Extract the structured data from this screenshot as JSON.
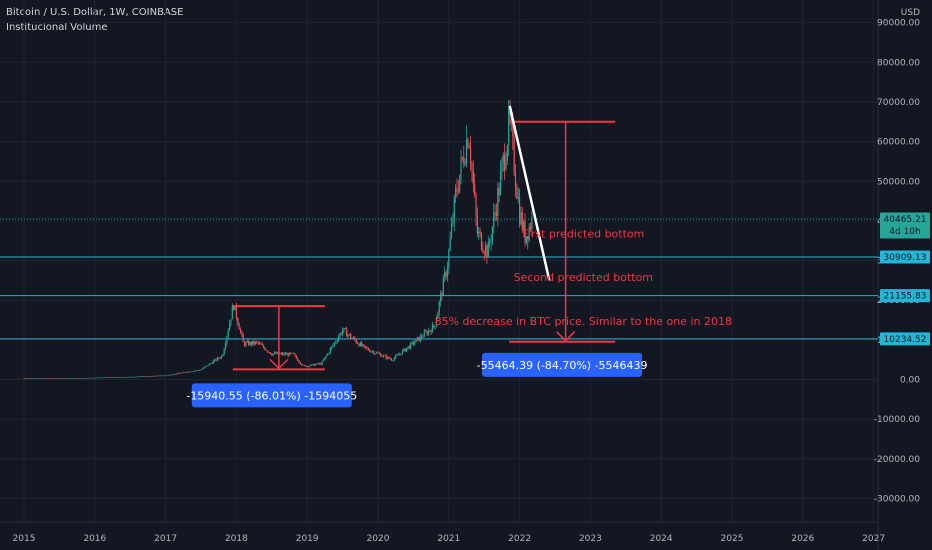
{
  "header": {
    "title": "Bitcoin / U.S. Dollar, 1W, COINBASE",
    "indicator": "Institucional Volume",
    "currency": "USD"
  },
  "colors": {
    "background": "#131722",
    "grid": "#1f2433",
    "candle_up": "#26a69a",
    "candle_down": "#ef5350",
    "support_line": "#22b7d6",
    "annotation": "#f23645",
    "trendline": "#ffffff",
    "measure_box": "#2962ff"
  },
  "chart_data": {
    "type": "candlestick",
    "title": "Bitcoin / U.S. Dollar, 1W, COINBASE",
    "xlabel": "",
    "ylabel": "",
    "x_ticks": [
      "2015",
      "2016",
      "2017",
      "2018",
      "2019",
      "2020",
      "2021",
      "2022",
      "2023",
      "2024",
      "2025",
      "2026",
      "2027"
    ],
    "y_ticks": [
      "90000.00",
      "80000.00",
      "70000.00",
      "60000.00",
      "50000.00",
      "40000.00",
      "30000.00",
      "20000.00",
      "10000.00",
      "0.00",
      "-10000.00",
      "-20000.00",
      "-30000.00"
    ],
    "ylim": [
      -35000,
      93000
    ],
    "grid": true,
    "price_series": [
      {
        "x": 2015.0,
        "y": 300
      },
      {
        "x": 2015.5,
        "y": 250
      },
      {
        "x": 2016.0,
        "y": 430
      },
      {
        "x": 2016.5,
        "y": 650
      },
      {
        "x": 2017.0,
        "y": 1000
      },
      {
        "x": 2017.5,
        "y": 2500
      },
      {
        "x": 2017.8,
        "y": 6000
      },
      {
        "x": 2017.96,
        "y": 19000
      },
      {
        "x": 2018.1,
        "y": 9000
      },
      {
        "x": 2018.3,
        "y": 9200
      },
      {
        "x": 2018.5,
        "y": 6500
      },
      {
        "x": 2018.8,
        "y": 6300
      },
      {
        "x": 2018.95,
        "y": 3300
      },
      {
        "x": 2019.2,
        "y": 4000
      },
      {
        "x": 2019.5,
        "y": 12500
      },
      {
        "x": 2019.8,
        "y": 8000
      },
      {
        "x": 2020.2,
        "y": 5000
      },
      {
        "x": 2020.5,
        "y": 9200
      },
      {
        "x": 2020.8,
        "y": 13500
      },
      {
        "x": 2020.98,
        "y": 29000
      },
      {
        "x": 2021.1,
        "y": 47000
      },
      {
        "x": 2021.28,
        "y": 63000
      },
      {
        "x": 2021.4,
        "y": 37000
      },
      {
        "x": 2021.55,
        "y": 32000
      },
      {
        "x": 2021.7,
        "y": 47000
      },
      {
        "x": 2021.86,
        "y": 65000
      },
      {
        "x": 2022.0,
        "y": 42000
      },
      {
        "x": 2022.08,
        "y": 36000
      },
      {
        "x": 2022.18,
        "y": 40465
      }
    ],
    "current_price": {
      "label": "40465.21",
      "sub": "4d 10h",
      "y": 40465.21
    },
    "horizontal_levels": [
      {
        "label": "30909.13",
        "y": 30909.13
      },
      {
        "label": "21155.83",
        "y": 21155.83
      },
      {
        "label": "10234.52",
        "y": 10234.52
      }
    ],
    "annotations": [
      {
        "text": "First predicted bottom",
        "x": 2022.9,
        "y": 35800
      },
      {
        "text": "Second predicted bottom",
        "x": 2022.9,
        "y": 24800
      },
      {
        "text": "85% decrease in BTC price. Similar to the one in 2018",
        "x": 2022.9,
        "y": 13800
      }
    ],
    "measurements": [
      {
        "label": "-15940.55 (-86.01%) -1594055",
        "x_start": 2017.95,
        "x_end": 2019.25,
        "y_top": 18500,
        "y_bottom": 2560,
        "box_x": 2018.5,
        "box_y": -4000
      },
      {
        "label": "-55464.39 (-84.70%) -5546439",
        "x_start": 2021.85,
        "x_end": 2023.35,
        "y_top": 65000,
        "y_bottom": 9536,
        "box_x": 2022.6,
        "box_y": 3700
      }
    ],
    "trendline": {
      "x1": 2021.86,
      "y1": 69000,
      "x2": 2022.42,
      "y2": 25000
    }
  }
}
